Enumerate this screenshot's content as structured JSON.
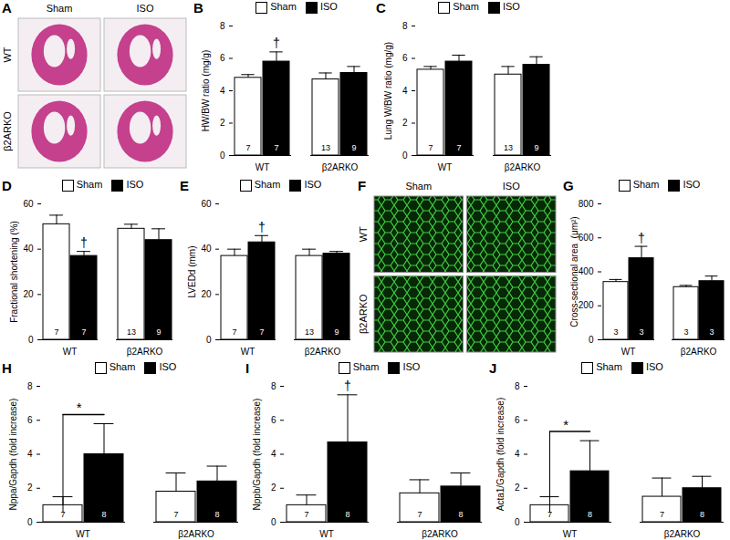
{
  "chart_data": [
    {
      "panel": "A",
      "type": "image",
      "columns": [
        "Sham",
        "ISO"
      ],
      "rows": [
        "WT",
        "β2ARKO"
      ]
    },
    {
      "panel": "B",
      "type": "bar",
      "ylabel": "HW/BW ratio (mg/g)",
      "categories": [
        "WT",
        "β2ARKO"
      ],
      "legend": "top",
      "ylim": [
        0,
        8
      ],
      "yticks": [
        0,
        2,
        4,
        6,
        8
      ],
      "series": [
        {
          "name": "Sham",
          "color": "#ffffff",
          "values": [
            4.8,
            4.7
          ],
          "errors": [
            0.2,
            0.4
          ],
          "n": [
            7,
            13
          ]
        },
        {
          "name": "ISO",
          "color": "#000000",
          "values": [
            5.8,
            5.1
          ],
          "errors": [
            0.6,
            0.4
          ],
          "n": [
            7,
            9
          ]
        }
      ],
      "annotations": [
        {
          "category": "WT",
          "series": "ISO",
          "text": "†"
        }
      ]
    },
    {
      "panel": "C",
      "type": "bar",
      "ylabel": "Lung W/BW ratio (mg/g)",
      "categories": [
        "WT",
        "β2ARKO"
      ],
      "legend": "top",
      "ylim": [
        0,
        8
      ],
      "yticks": [
        0,
        2,
        4,
        6,
        8
      ],
      "series": [
        {
          "name": "Sham",
          "color": "#ffffff",
          "values": [
            5.3,
            5.0
          ],
          "errors": [
            0.2,
            0.5
          ],
          "n": [
            7,
            13
          ]
        },
        {
          "name": "ISO",
          "color": "#000000",
          "values": [
            5.8,
            5.6
          ],
          "errors": [
            0.4,
            0.5
          ],
          "n": [
            7,
            9
          ]
        }
      ],
      "annotations": []
    },
    {
      "panel": "D",
      "type": "bar",
      "ylabel": "Fractional shortening (%)",
      "categories": [
        "WT",
        "β2ARKO"
      ],
      "legend": "top",
      "ylim": [
        0,
        60
      ],
      "yticks": [
        0,
        20,
        40,
        60
      ],
      "series": [
        {
          "name": "Sham",
          "color": "#ffffff",
          "values": [
            51,
            49
          ],
          "errors": [
            4,
            2
          ],
          "n": [
            7,
            13
          ]
        },
        {
          "name": "ISO",
          "color": "#000000",
          "values": [
            37,
            44
          ],
          "errors": [
            2,
            5
          ],
          "n": [
            7,
            9
          ]
        }
      ],
      "annotations": [
        {
          "category": "WT",
          "series": "ISO",
          "text": "†"
        }
      ]
    },
    {
      "panel": "E",
      "type": "bar",
      "ylabel": "LVEDd (mm)",
      "categories": [
        "WT",
        "β2ARKO"
      ],
      "legend": "top",
      "ylim": [
        0,
        60
      ],
      "yticks": [
        0,
        20,
        40,
        60
      ],
      "series": [
        {
          "name": "Sham",
          "color": "#ffffff",
          "values": [
            37,
            37
          ],
          "errors": [
            3,
            3
          ],
          "n": [
            7,
            13
          ]
        },
        {
          "name": "ISO",
          "color": "#000000",
          "values": [
            43,
            38
          ],
          "errors": [
            3,
            1
          ],
          "n": [
            7,
            9
          ]
        }
      ],
      "annotations": [
        {
          "category": "WT",
          "series": "ISO",
          "text": "†"
        }
      ]
    },
    {
      "panel": "F",
      "type": "image",
      "columns": [
        "Sham",
        "ISO"
      ],
      "rows": [
        "WT",
        "β2ARKO"
      ]
    },
    {
      "panel": "G",
      "type": "bar",
      "ylabel": "Cross-sectional area  (μm²)",
      "categories": [
        "WT",
        "β2ARKO"
      ],
      "legend": "top",
      "ylim": [
        0,
        800
      ],
      "yticks": [
        0,
        200,
        400,
        600,
        800
      ],
      "series": [
        {
          "name": "Sham",
          "color": "#ffffff",
          "values": [
            340,
            310
          ],
          "errors": [
            15,
            10
          ],
          "n": [
            3,
            3
          ]
        },
        {
          "name": "ISO",
          "color": "#000000",
          "values": [
            480,
            345
          ],
          "errors": [
            70,
            30
          ],
          "n": [
            3,
            3
          ]
        }
      ],
      "annotations": [
        {
          "category": "WT",
          "series": "ISO",
          "text": "†"
        }
      ]
    },
    {
      "panel": "H",
      "type": "bar",
      "ylabel": "Nppa/Gapdh (fold increase)",
      "categories": [
        "WT",
        "β2ARKO"
      ],
      "legend": "top",
      "ylim": [
        0,
        8
      ],
      "yticks": [
        0,
        2,
        4,
        6,
        8
      ],
      "series": [
        {
          "name": "Sham",
          "color": "#ffffff",
          "values": [
            1.0,
            1.8
          ],
          "errors": [
            0.5,
            1.1
          ],
          "n": [
            7,
            7
          ]
        },
        {
          "name": "ISO",
          "color": "#000000",
          "values": [
            4.0,
            2.4
          ],
          "errors": [
            1.8,
            0.9
          ],
          "n": [
            8,
            8
          ]
        }
      ],
      "annotations": [
        {
          "category": "WT",
          "from": "Sham",
          "to": "ISO",
          "text": "*"
        }
      ]
    },
    {
      "panel": "I",
      "type": "bar",
      "ylabel": "Nppb/Gapdh (fold increase)",
      "categories": [
        "WT",
        "β2ARKO"
      ],
      "legend": "top",
      "ylim": [
        0,
        8
      ],
      "yticks": [
        0,
        2,
        4,
        6,
        8
      ],
      "series": [
        {
          "name": "Sham",
          "color": "#ffffff",
          "values": [
            1.0,
            1.7
          ],
          "errors": [
            0.6,
            0.8
          ],
          "n": [
            7,
            7
          ]
        },
        {
          "name": "ISO",
          "color": "#000000",
          "values": [
            4.7,
            2.1
          ],
          "errors": [
            2.8,
            0.8
          ],
          "n": [
            8,
            8
          ]
        }
      ],
      "annotations": [
        {
          "category": "WT",
          "series": "ISO",
          "text": "†"
        }
      ]
    },
    {
      "panel": "J",
      "type": "bar",
      "ylabel": "Acta1/Gapdh (fold increase)",
      "categories": [
        "WT",
        "β2ARKO"
      ],
      "legend": "top",
      "ylim": [
        0,
        8
      ],
      "yticks": [
        0,
        2,
        4,
        6,
        8
      ],
      "series": [
        {
          "name": "Sham",
          "color": "#ffffff",
          "values": [
            1.0,
            1.5
          ],
          "errors": [
            0.5,
            1.1
          ],
          "n": [
            7,
            7
          ]
        },
        {
          "name": "ISO",
          "color": "#000000",
          "values": [
            3.0,
            2.0
          ],
          "errors": [
            1.8,
            0.7
          ],
          "n": [
            8,
            8
          ]
        }
      ],
      "annotations": [
        {
          "category": "WT",
          "from": "Sham",
          "to": "ISO",
          "text": "*"
        }
      ]
    }
  ]
}
